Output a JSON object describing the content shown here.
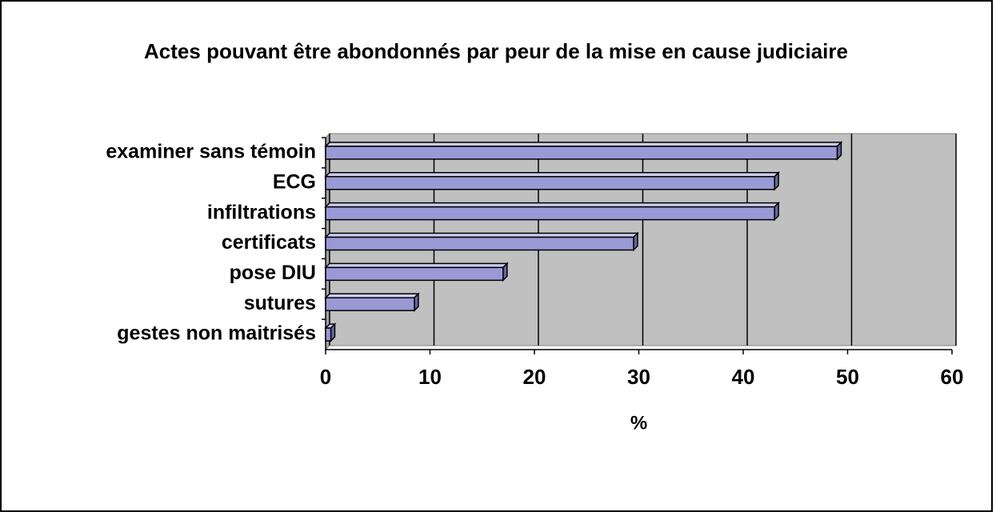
{
  "chart_data": {
    "type": "hbar",
    "title": "Actes pouvant être abondonnés par peur de la mise en cause judiciaire",
    "categories": [
      "examiner sans témoin",
      "ECG",
      "infiltrations",
      "certificats",
      "pose DIU",
      "sutures",
      "gestes non maitrisés"
    ],
    "values": [
      49,
      43,
      43,
      29.5,
      17,
      8.5,
      0.5
    ],
    "color": "#9999d6",
    "xlabel": "%",
    "xlim": [
      0,
      60
    ],
    "xticks": [
      0,
      10,
      20,
      30,
      40,
      50,
      60
    ],
    "grid": true
  }
}
